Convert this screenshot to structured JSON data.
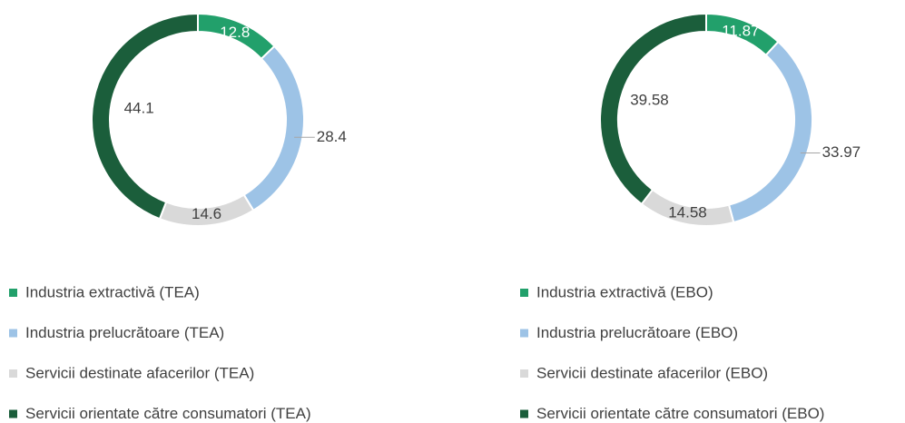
{
  "chart_data": [
    {
      "type": "donut",
      "categories": [
        "Industria extractivă (TEA)",
        "Industria prelucrătoare (TEA)",
        "Servicii destinate afacerilor (TEA)",
        "Servicii orientate către consumatori (TEA)"
      ],
      "values": [
        12.8,
        28.4,
        14.6,
        44.1
      ],
      "colors": [
        "#22a06b",
        "#9dc3e6",
        "#d9d9d9",
        "#1b5e3b"
      ]
    },
    {
      "type": "donut",
      "categories": [
        "Industria extractivă (EBO)",
        "Industria prelucrătoare (EBO)",
        "Servicii destinate afacerilor (EBO)",
        "Servicii orientate către consumatori (EBO)"
      ],
      "values": [
        11.87,
        33.97,
        14.58,
        39.58
      ],
      "colors": [
        "#22a06b",
        "#9dc3e6",
        "#d9d9d9",
        "#1b5e3b"
      ]
    }
  ]
}
